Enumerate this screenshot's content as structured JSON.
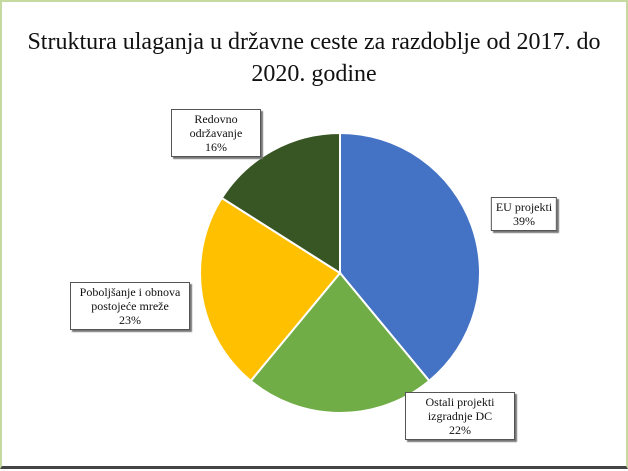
{
  "chart_data": {
    "type": "pie",
    "title": "Struktura ulaganja u državne ceste za razdoblje od 2017. do 2020. godine",
    "categories": [
      "EU projekti",
      "Ostali projekti izgradnje DC",
      "Poboljšanje i obnova postojeće mreže",
      "Redovno održavanje"
    ],
    "values": [
      39,
      22,
      23,
      16
    ],
    "value_labels": [
      "39%",
      "22%",
      "23%",
      "16%"
    ],
    "colors": [
      "#4472c4",
      "#70ad47",
      "#ffc000",
      "#375623"
    ]
  }
}
